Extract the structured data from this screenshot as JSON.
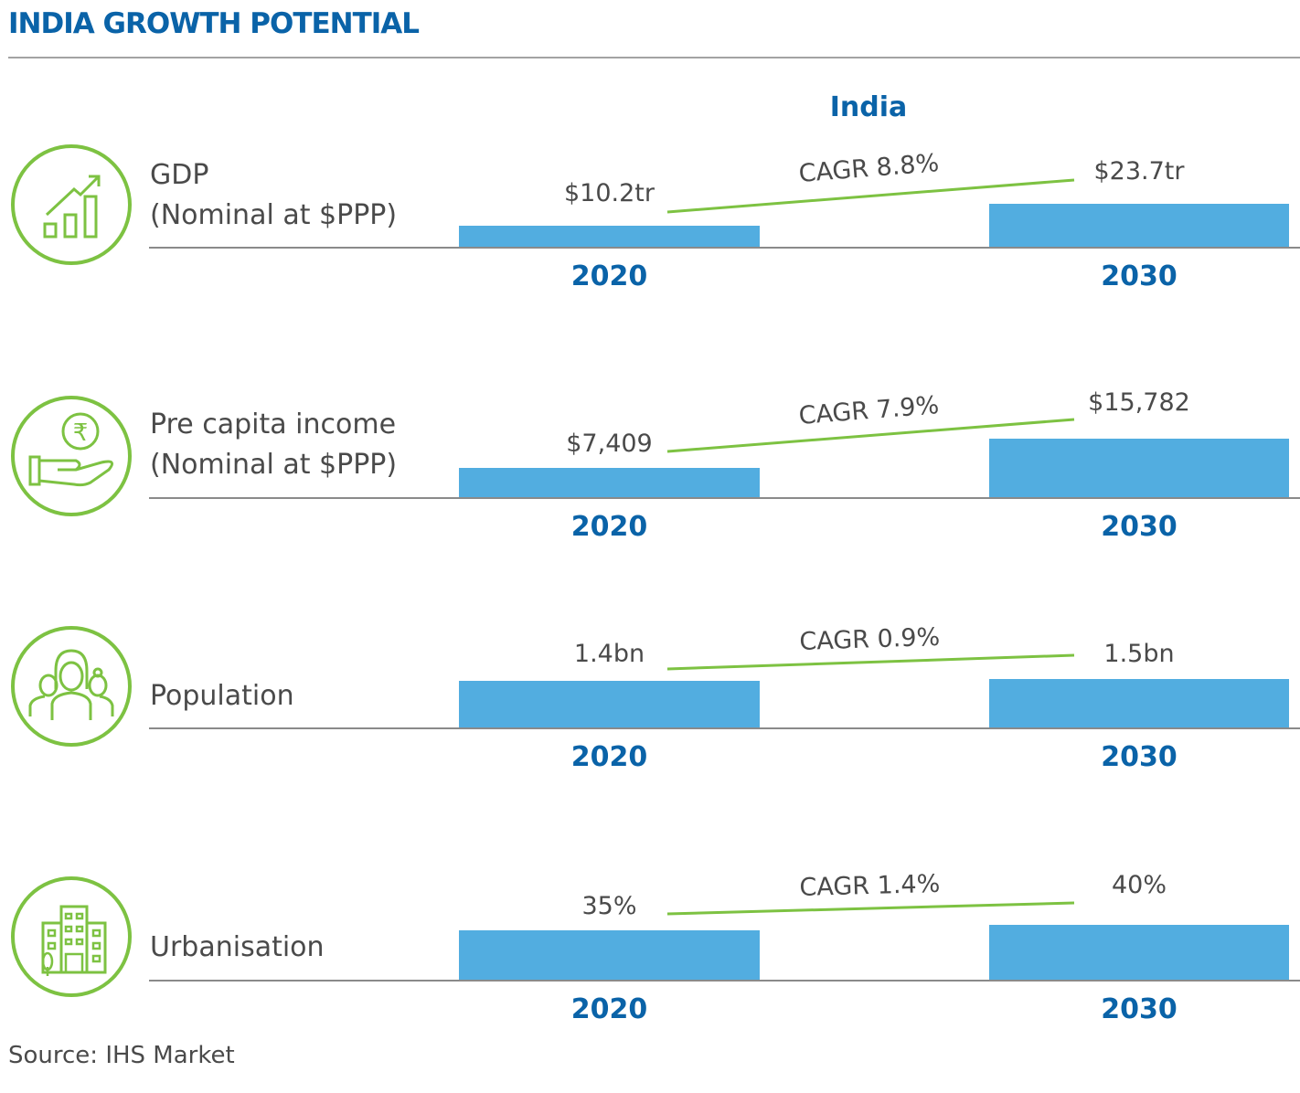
{
  "title": "INDIA GROWTH POTENTIAL",
  "country_label": "India",
  "colors": {
    "title": "#0a63a8",
    "bar": "#52ade0",
    "cagr_line": "#7dc242",
    "icon": "#7dc242",
    "text": "#4a4a4a",
    "rule": "#a3a3a3"
  },
  "source": "Source: IHS Market",
  "chart_data": {
    "type": "bar",
    "title": "INDIA GROWTH POTENTIAL",
    "subtitle": "India",
    "categories": [
      "2020",
      "2030"
    ],
    "xlabel": "",
    "ylabel": "",
    "grid": false,
    "panels": [
      {
        "id": "gdp",
        "icon": "growth-chart-icon",
        "label_lines": [
          "GDP",
          "(Nominal at $PPP)"
        ],
        "values": [
          10.2,
          23.7
        ],
        "unit": "tr USD",
        "value_labels": [
          "$10.2tr",
          "$23.7tr"
        ],
        "bar_fill_relative": [
          0.48,
          1.0
        ],
        "cagr_label": "CAGR 8.8%",
        "cagr": 8.8
      },
      {
        "id": "income",
        "icon": "rupee-hand-icon",
        "label_lines": [
          "Pre capita income",
          "(Nominal at $PPP)"
        ],
        "values": [
          7409,
          15782
        ],
        "unit": "USD",
        "value_labels": [
          "$7,409",
          "$15,782"
        ],
        "bar_fill_relative": [
          0.5,
          1.0
        ],
        "cagr_label": "CAGR 7.9%",
        "cagr": 7.9
      },
      {
        "id": "population",
        "icon": "people-group-icon",
        "label_lines": [
          "Population"
        ],
        "values": [
          1.4,
          1.5
        ],
        "unit": "bn",
        "value_labels": [
          "1.4bn",
          "1.5bn"
        ],
        "bar_fill_relative": [
          0.96,
          1.0
        ],
        "cagr_label": "CAGR 0.9%",
        "cagr": 0.9
      },
      {
        "id": "urbanisation",
        "icon": "buildings-icon",
        "label_lines": [
          "Urbanisation"
        ],
        "values": [
          35,
          40
        ],
        "unit": "%",
        "value_labels": [
          "35%",
          "40%"
        ],
        "bar_fill_relative": [
          0.9,
          1.0
        ],
        "cagr_label": "CAGR 1.4%",
        "cagr": 1.4
      }
    ]
  }
}
